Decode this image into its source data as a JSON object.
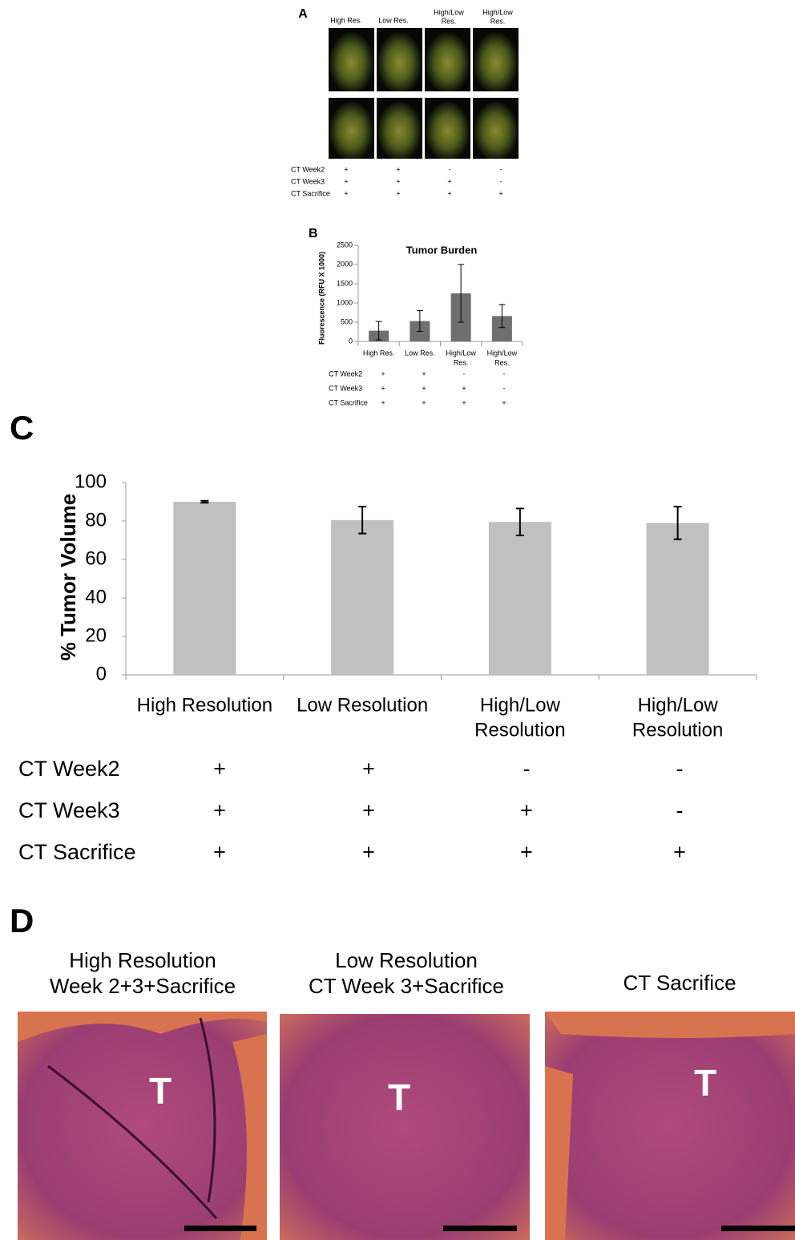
{
  "panel_a": {
    "label": "A",
    "columns": [
      "High Res.",
      "Low Res.",
      [
        "High/Low",
        "Res."
      ],
      [
        "High/Low",
        "Res."
      ]
    ],
    "row_labels": [
      "CT Week2",
      "CT Week3",
      "CT Sacrifice"
    ],
    "marks": [
      [
        "+",
        "+",
        "-",
        "-"
      ],
      [
        "+",
        "+",
        "+",
        "-"
      ],
      [
        "+",
        "+",
        "+",
        "+"
      ]
    ]
  },
  "chart_data": [
    {
      "type": "bar",
      "label": "B",
      "title": "Tumor Burden",
      "y_label": "Fluorescence (RFU X 1000)",
      "categories": [
        "High Res.",
        "Low Res.",
        [
          "High/Low",
          "Res."
        ],
        [
          "High/Low",
          "Res."
        ]
      ],
      "values": [
        280,
        530,
        1250,
        660
      ],
      "errors": [
        240,
        270,
        750,
        300
      ],
      "color": "#6f6f6f",
      "ylim": [
        0,
        2500
      ],
      "yticks": [
        0,
        500,
        1000,
        1500,
        2000,
        2500
      ],
      "row_labels": [
        "CT Week2",
        "CT Week3",
        "CT Sacrifice"
      ],
      "marks": [
        [
          "+",
          "+",
          "-",
          "-"
        ],
        [
          "+",
          "+",
          "+",
          "-"
        ],
        [
          "+",
          "+",
          "+",
          "+"
        ]
      ]
    },
    {
      "type": "bar",
      "label": "C",
      "y_label": "% Tumor Volume",
      "categories": [
        "High Resolution",
        "Low Resolution",
        [
          "High/Low",
          "Resolution"
        ],
        [
          "High/Low",
          "Resolution"
        ]
      ],
      "values": [
        90,
        80.5,
        79.5,
        79
      ],
      "errors": [
        0.5,
        7,
        7,
        8.5
      ],
      "color": "#c0c0c0",
      "ylim": [
        0,
        100
      ],
      "yticks": [
        0,
        20,
        40,
        60,
        80,
        100
      ],
      "row_labels": [
        "CT Week2",
        "CT Week3",
        "CT Sacrifice"
      ],
      "marks": [
        [
          "+",
          "+",
          "-",
          "-"
        ],
        [
          "+",
          "+",
          "+",
          "-"
        ],
        [
          "+",
          "+",
          "+",
          "+"
        ]
      ]
    }
  ],
  "panel_d": {
    "label": "D",
    "titles": [
      [
        "High Resolution",
        "Week 2+3+Sacrifice"
      ],
      [
        "Low Resolution",
        "CT Week 3+Sacrifice"
      ],
      [
        "CT Sacrifice"
      ]
    ],
    "tumor_label": "T"
  }
}
